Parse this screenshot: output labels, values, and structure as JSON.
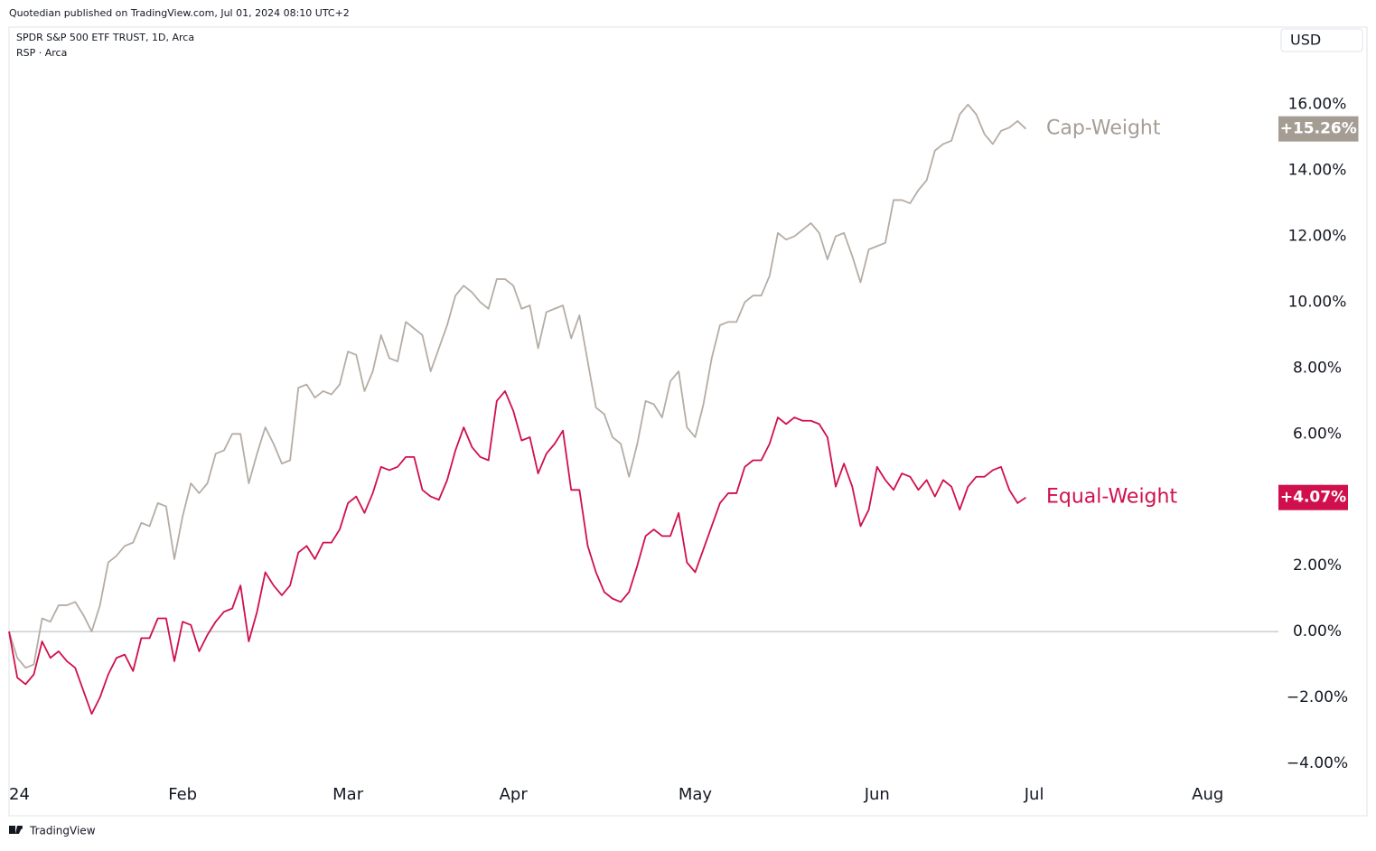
{
  "header": {
    "published": "Quotedian published on TradingView.com, Jul 01, 2024 08:10 UTC+2",
    "symbol": "SPDR S&P 500 ETF TRUST, 1D, Arca",
    "compare": "RSP · Arca",
    "currency": "USD",
    "footer": "TradingView"
  },
  "chart_data": {
    "type": "line",
    "categories": [
      "24",
      null,
      null,
      null,
      null,
      null,
      null,
      null,
      null,
      null,
      null,
      null,
      null,
      null,
      null,
      null,
      null,
      null,
      null,
      null,
      null,
      "Feb",
      null,
      null,
      null,
      null,
      null,
      null,
      null,
      null,
      null,
      null,
      null,
      null,
      null,
      null,
      null,
      null,
      null,
      null,
      null,
      "Mar",
      null,
      null,
      null,
      null,
      null,
      null,
      null,
      null,
      null,
      null,
      null,
      null,
      null,
      null,
      null,
      null,
      null,
      null,
      null,
      "Apr",
      null,
      null,
      null,
      null,
      null,
      null,
      null,
      null,
      null,
      null,
      null,
      null,
      null,
      null,
      null,
      null,
      null,
      null,
      null,
      null,
      null,
      "May",
      null,
      null,
      null,
      null,
      null,
      null,
      null,
      null,
      null,
      null,
      null,
      null,
      null,
      null,
      null,
      null,
      null,
      null,
      null,
      null,
      null,
      "Jun",
      null,
      null,
      null,
      null,
      null,
      null,
      null,
      null,
      null,
      null,
      null,
      null,
      null,
      null,
      null,
      null,
      null,
      null,
      "Jul",
      null,
      null,
      null,
      null,
      null,
      null,
      null,
      null,
      null,
      null,
      null,
      null,
      null,
      null,
      null,
      null,
      null,
      null,
      null,
      null,
      "Aug"
    ],
    "series": [
      {
        "name": "Cap-Weight",
        "color": "#b5ada5",
        "label_color": "#a59d94",
        "values": [
          0,
          -0.8,
          -1.1,
          -1.0,
          0.4,
          0.3,
          0.8,
          0.8,
          0.9,
          0.5,
          0.0,
          0.8,
          2.1,
          2.3,
          2.6,
          2.7,
          3.3,
          3.2,
          3.9,
          3.8,
          2.2,
          3.5,
          4.5,
          4.2,
          4.5,
          5.4,
          5.5,
          6.0,
          6.0,
          4.5,
          5.4,
          6.2,
          5.7,
          5.1,
          5.2,
          7.4,
          7.5,
          7.1,
          7.3,
          7.2,
          7.5,
          8.5,
          8.4,
          7.3,
          7.9,
          9.0,
          8.3,
          8.2,
          9.4,
          9.2,
          9.0,
          7.9,
          8.6,
          9.3,
          10.2,
          10.5,
          10.3,
          10.0,
          9.8,
          10.7,
          10.7,
          10.5,
          9.8,
          9.9,
          8.6,
          9.7,
          9.8,
          9.9,
          8.9,
          9.6,
          8.2,
          6.8,
          6.6,
          5.9,
          5.7,
          4.7,
          5.7,
          7.0,
          6.9,
          6.5,
          7.6,
          7.9,
          6.2,
          5.9,
          6.9,
          8.3,
          9.3,
          9.4,
          9.4,
          10.0,
          10.2,
          10.2,
          10.8,
          12.1,
          11.9,
          12.0,
          12.2,
          12.4,
          12.1,
          11.3,
          12.0,
          12.1,
          11.4,
          10.6,
          11.6,
          11.7,
          11.8,
          13.1,
          13.1,
          13.0,
          13.4,
          13.7,
          14.6,
          14.8,
          14.9,
          15.7,
          16.0,
          15.7,
          15.1,
          14.8,
          15.2,
          15.3,
          15.5,
          15.26,
          null,
          null,
          null,
          null,
          null,
          null,
          null,
          null,
          null,
          null,
          null,
          null,
          null,
          null,
          null,
          null,
          null,
          null,
          null,
          null,
          null,
          null
        ],
        "value_labels": [
          null,
          null,
          null,
          null,
          null,
          null,
          null,
          null,
          null,
          null,
          null,
          null,
          null,
          null,
          null,
          null,
          null,
          null,
          null,
          null,
          null,
          null,
          null,
          null,
          null,
          null,
          null,
          null,
          null,
          null,
          null,
          null,
          null,
          null,
          null,
          null,
          null,
          null,
          null,
          null,
          null,
          null,
          null,
          null,
          null,
          null,
          null,
          null,
          null,
          null,
          null,
          null,
          null,
          null,
          null,
          null,
          null,
          null,
          null,
          null,
          null,
          null,
          null,
          null,
          null,
          null,
          null,
          null,
          null,
          null,
          null,
          null,
          null,
          null,
          null,
          null,
          null,
          null,
          null,
          null,
          null,
          null,
          null,
          null,
          null,
          null,
          null,
          null,
          null,
          null,
          null,
          null,
          null,
          null,
          null,
          null,
          null,
          null,
          null,
          null,
          null,
          null,
          null,
          null,
          null,
          null,
          null,
          null,
          null,
          null,
          null,
          null,
          null,
          null,
          null,
          null,
          null,
          null,
          null,
          null,
          null,
          null,
          null,
          "+15.26%",
          null,
          null,
          null,
          null,
          null,
          null,
          null,
          null,
          null,
          null,
          null,
          null,
          null,
          null,
          null,
          null,
          null,
          null,
          null,
          null,
          null,
          null
        ]
      },
      {
        "name": "Equal-Weight",
        "color": "#d0104c",
        "label_color": "#d0104c",
        "values": [
          0,
          -1.4,
          -1.6,
          -1.3,
          -0.3,
          -0.8,
          -0.6,
          -0.9,
          -1.1,
          -1.8,
          -2.5,
          -2.0,
          -1.3,
          -0.8,
          -0.7,
          -1.2,
          -0.2,
          -0.2,
          0.4,
          0.4,
          -0.9,
          0.3,
          0.2,
          -0.6,
          -0.1,
          0.3,
          0.6,
          0.7,
          1.4,
          -0.3,
          0.6,
          1.8,
          1.4,
          1.1,
          1.4,
          2.4,
          2.6,
          2.2,
          2.7,
          2.7,
          3.1,
          3.9,
          4.1,
          3.6,
          4.2,
          5.0,
          4.9,
          5.0,
          5.3,
          5.3,
          4.3,
          4.1,
          4.0,
          4.6,
          5.5,
          6.2,
          5.6,
          5.3,
          5.2,
          7.0,
          7.3,
          6.7,
          5.8,
          5.9,
          4.8,
          5.4,
          5.7,
          6.1,
          4.3,
          4.3,
          2.6,
          1.8,
          1.2,
          1.0,
          0.9,
          1.2,
          2.0,
          2.9,
          3.1,
          2.9,
          2.9,
          3.6,
          2.1,
          1.8,
          2.5,
          3.2,
          3.9,
          4.2,
          4.2,
          5.0,
          5.2,
          5.2,
          5.7,
          6.5,
          6.3,
          6.5,
          6.4,
          6.4,
          6.3,
          5.9,
          4.4,
          5.1,
          4.4,
          3.2,
          3.7,
          5.0,
          4.6,
          4.3,
          4.8,
          4.7,
          4.3,
          4.6,
          4.1,
          4.6,
          4.4,
          3.7,
          4.4,
          4.7,
          4.7,
          4.9,
          5.0,
          4.3,
          3.9,
          4.07,
          null,
          null,
          null,
          null,
          null,
          null,
          null,
          null,
          null,
          null,
          null,
          null,
          null,
          null,
          null,
          null,
          null,
          null,
          null,
          null,
          null,
          null
        ],
        "value_labels": [
          null,
          null,
          null,
          null,
          null,
          null,
          null,
          null,
          null,
          null,
          null,
          null,
          null,
          null,
          null,
          null,
          null,
          null,
          null,
          null,
          null,
          null,
          null,
          null,
          null,
          null,
          null,
          null,
          null,
          null,
          null,
          null,
          null,
          null,
          null,
          null,
          null,
          null,
          null,
          null,
          null,
          null,
          null,
          null,
          null,
          null,
          null,
          null,
          null,
          null,
          null,
          null,
          null,
          null,
          null,
          null,
          null,
          null,
          null,
          null,
          null,
          null,
          null,
          null,
          null,
          null,
          null,
          null,
          null,
          null,
          null,
          null,
          null,
          null,
          null,
          null,
          null,
          null,
          null,
          null,
          null,
          null,
          null,
          null,
          null,
          null,
          null,
          null,
          null,
          null,
          null,
          null,
          null,
          null,
          null,
          null,
          null,
          null,
          null,
          null,
          null,
          null,
          null,
          null,
          null,
          null,
          null,
          null,
          null,
          null,
          null,
          null,
          null,
          null,
          null,
          null,
          null,
          null,
          null,
          null,
          null,
          null,
          null,
          "+4.07%",
          null,
          null,
          null,
          null,
          null,
          null,
          null,
          null,
          null,
          null,
          null,
          null,
          null,
          null,
          null,
          null,
          null,
          null,
          null,
          null,
          null,
          null
        ]
      }
    ],
    "ylim": [
      -4.55,
      18.35
    ],
    "yticks": [
      {
        "value": 16,
        "label": "16.00%"
      },
      {
        "value": 14,
        "label": "14.00%"
      },
      {
        "value": 12,
        "label": "12.00%"
      },
      {
        "value": 10,
        "label": "10.00%"
      },
      {
        "value": 8,
        "label": "8.00%"
      },
      {
        "value": 6,
        "label": "6.00%"
      },
      {
        "value": 4,
        "label": "4.00%"
      },
      {
        "value": 2,
        "label": "2.00%"
      },
      {
        "value": 0,
        "label": "0.00%"
      },
      {
        "value": -2,
        "label": "−2.00%"
      },
      {
        "value": -4,
        "label": "−4.00%"
      }
    ],
    "grid": false,
    "zero_line": true
  }
}
